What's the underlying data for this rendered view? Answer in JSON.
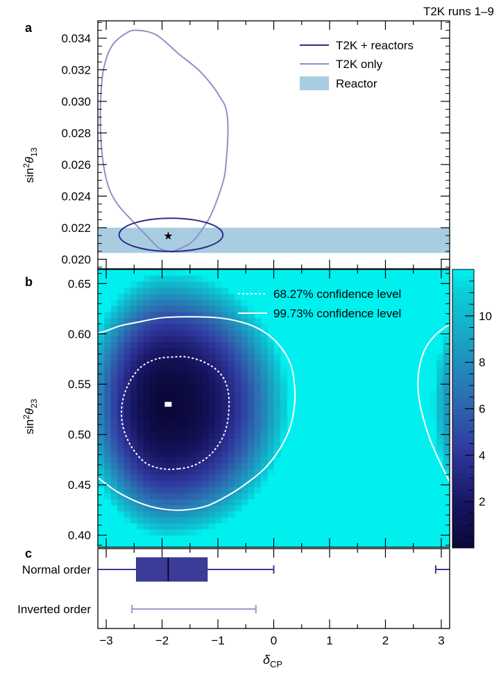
{
  "figure": {
    "run_label": "T2K runs 1–9",
    "shared_x": {
      "label_main": "δ",
      "label_sub": "CP",
      "ticks": [
        -3,
        -2,
        -1,
        0,
        1,
        2,
        3
      ],
      "xlim": [
        -3.15,
        3.15
      ]
    }
  },
  "chart_data": [
    {
      "panel": "a",
      "type": "scatter",
      "title": "",
      "xlabel": "δCP",
      "ylabel_main": "sin",
      "ylabel_sup": "2",
      "ylabel_theta": "θ",
      "ylabel_sub": "13",
      "xlim": [
        -3.15,
        3.15
      ],
      "ylim": [
        0.0194,
        0.0351
      ],
      "yticks": [
        0.02,
        0.022,
        0.024,
        0.026,
        0.028,
        0.03,
        0.032,
        0.034
      ],
      "legend_position": "top-right",
      "legend": [
        {
          "label": "T2K + reactors",
          "kind": "line",
          "color": "#2b2f8c"
        },
        {
          "label": "T2K only",
          "kind": "line",
          "color": "#8f8fc8"
        },
        {
          "label": "Reactor",
          "kind": "band",
          "color": "#a8cde0"
        }
      ],
      "reactor_band": {
        "y_low": 0.0204,
        "y_high": 0.022,
        "color": "#a8cde0"
      },
      "best_fit": {
        "x": -1.89,
        "y": 0.0215,
        "marker": "star",
        "color": "#2b2f8c"
      },
      "series": [
        {
          "name": "T2K only",
          "closed": true,
          "color": "#8f8fc8",
          "x": [
            -1.8,
            -1.5,
            -1.3,
            -1.1,
            -0.9,
            -0.85,
            -0.82,
            -0.83,
            -0.87,
            -0.95,
            -1.1,
            -1.35,
            -1.7,
            -2.1,
            -2.45,
            -2.65,
            -2.9,
            -3.05,
            -3.1,
            -3.1,
            -3.05,
            -2.95,
            -2.8,
            -2.55,
            -2.25,
            -2.05,
            -1.85
          ],
          "y": [
            0.0205,
            0.021,
            0.0218,
            0.023,
            0.025,
            0.0263,
            0.028,
            0.029,
            0.0297,
            0.0302,
            0.031,
            0.032,
            0.033,
            0.0342,
            0.0345,
            0.0343,
            0.0335,
            0.032,
            0.03,
            0.028,
            0.026,
            0.0245,
            0.0235,
            0.0225,
            0.0214,
            0.0207,
            0.0205
          ]
        },
        {
          "name": "T2K + reactors",
          "closed": true,
          "ellipse": {
            "cx": -1.84,
            "cy": 0.02155,
            "rx": 0.93,
            "ry": 0.00105
          },
          "color": "#2b2f8c"
        }
      ]
    },
    {
      "panel": "b",
      "type": "heatmap",
      "title": "",
      "xlabel": "δCP",
      "ylabel_main": "sin",
      "ylabel_sup": "2",
      "ylabel_theta": "θ",
      "ylabel_sub": "23",
      "xlim": [
        -3.15,
        3.15
      ],
      "ylim": [
        0.388,
        0.664
      ],
      "yticks": [
        0.4,
        0.45,
        0.5,
        0.55,
        0.6,
        0.65
      ],
      "colorbar": {
        "min": 0,
        "max": 12,
        "ticks": [
          2,
          4,
          6,
          8,
          10
        ]
      },
      "best_fit": {
        "x": -1.89,
        "y": 0.53,
        "marker": "square",
        "color": "#ffffff"
      },
      "legend_position": "top-right",
      "legend": [
        {
          "label": "68.27% confidence level",
          "style": "dashed"
        },
        {
          "label": "99.73% confidence level",
          "style": "solid"
        }
      ],
      "contours": [
        {
          "name": "68.27% confidence level",
          "style": "dashed",
          "x": [
            -1.7,
            -1.4,
            -1.1,
            -0.87,
            -0.8,
            -0.85,
            -1.0,
            -1.25,
            -1.55,
            -1.8,
            -2.1,
            -2.4,
            -2.62,
            -2.72,
            -2.7,
            -2.55,
            -2.3,
            -2.0
          ],
          "y": [
            0.466,
            0.47,
            0.482,
            0.503,
            0.53,
            0.55,
            0.563,
            0.572,
            0.577,
            0.577,
            0.575,
            0.566,
            0.548,
            0.528,
            0.508,
            0.488,
            0.472,
            0.466
          ]
        },
        {
          "name": "99.73% confidence level",
          "style": "solid",
          "x": [
            -3.15,
            -2.8,
            -2.4,
            -2.0,
            -1.6,
            -1.2,
            -0.8,
            -0.45,
            -0.15,
            0.1,
            0.28,
            0.37,
            0.37,
            0.3,
            0.15,
            -0.05,
            -0.3,
            -0.6,
            -1.0,
            -1.5,
            -2.0,
            -2.4,
            -2.75,
            -3.0,
            -3.15
          ],
          "y": [
            0.457,
            0.443,
            0.432,
            0.426,
            0.425,
            0.429,
            0.44,
            0.453,
            0.467,
            0.485,
            0.505,
            0.528,
            0.55,
            0.57,
            0.585,
            0.597,
            0.606,
            0.612,
            0.616,
            0.617,
            0.616,
            0.612,
            0.608,
            0.603,
            0.601
          ]
        },
        {
          "name": "99.73% confidence level (wrap)",
          "style": "solid",
          "x": [
            3.15,
            2.98,
            2.82,
            2.7,
            2.62,
            2.58,
            2.62,
            2.72,
            2.88,
            3.05,
            3.15
          ],
          "y": [
            0.453,
            0.472,
            0.492,
            0.512,
            0.53,
            0.55,
            0.57,
            0.586,
            0.598,
            0.606,
            0.609
          ]
        }
      ]
    },
    {
      "panel": "c",
      "type": "box",
      "title": "",
      "xlabel": "δCP",
      "categories": [
        "Normal order",
        "Inverted order"
      ],
      "series": [
        {
          "name": "Normal order",
          "color": "#3b3b98",
          "box": [
            -2.46,
            -1.19
          ],
          "median": -1.89,
          "intervals": [
            [
              -3.15,
              0.0
            ],
            [
              2.9,
              3.15
            ]
          ]
        },
        {
          "name": "Inverted order",
          "color": "#9a9ad0",
          "intervals": [
            [
              -2.54,
              -0.32
            ]
          ]
        }
      ]
    }
  ]
}
